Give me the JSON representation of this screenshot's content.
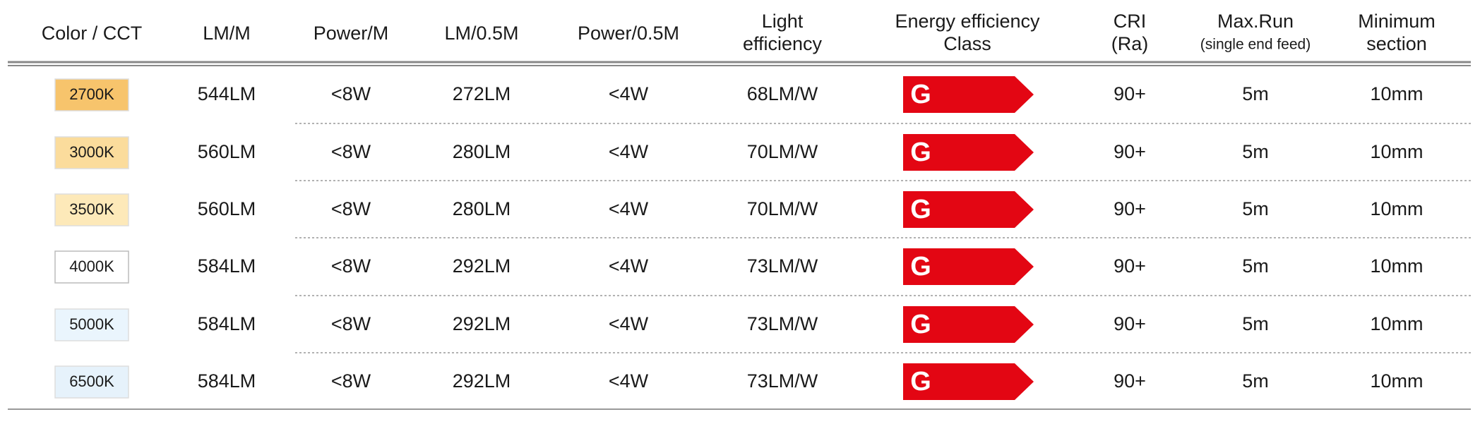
{
  "table": {
    "headers": [
      [
        {
          "text": "Color / CCT"
        }
      ],
      [
        {
          "text": "LM/M"
        }
      ],
      [
        {
          "text": "Power/M"
        }
      ],
      [
        {
          "text": "LM/0.5M"
        }
      ],
      [
        {
          "text": "Power/0.5M"
        }
      ],
      [
        {
          "text": "Light"
        },
        {
          "text": "efficiency"
        }
      ],
      [
        {
          "text": "Energy efficiency"
        },
        {
          "text": "Class"
        }
      ],
      [
        {
          "text": "CRI"
        },
        {
          "text": "(Ra)"
        }
      ],
      [
        {
          "text": "Max.Run"
        },
        {
          "text": "(single end feed)",
          "small": true
        }
      ],
      [
        {
          "text": "Minimum"
        },
        {
          "text": "section"
        }
      ]
    ],
    "rows": [
      {
        "swatch": "#f7c46c",
        "cells": [
          "2700K",
          "544LM",
          "<8W",
          "272LM",
          "<4W",
          "68LM/W",
          "G",
          "90+",
          "5m",
          "10mm"
        ]
      },
      {
        "swatch": "#fbdc9c",
        "cells": [
          "3000K",
          "560LM",
          "<8W",
          "280LM",
          "<4W",
          "70LM/W",
          "G",
          "90+",
          "5m",
          "10mm"
        ]
      },
      {
        "swatch": "#fde9b9",
        "cells": [
          "3500K",
          "560LM",
          "<8W",
          "280LM",
          "<4W",
          "70LM/W",
          "G",
          "90+",
          "5m",
          "10mm"
        ]
      },
      {
        "swatch": "#ffffff",
        "cells": [
          "4000K",
          "584LM",
          "<8W",
          "292LM",
          "<4W",
          "73LM/W",
          "G",
          "90+",
          "5m",
          "10mm"
        ]
      },
      {
        "swatch": "#eaf5fd",
        "cells": [
          "5000K",
          "584LM",
          "<8W",
          "292LM",
          "<4W",
          "73LM/W",
          "G",
          "90+",
          "5m",
          "10mm"
        ]
      },
      {
        "swatch": "#e6f2fb",
        "cells": [
          "6500K",
          "584LM",
          "<8W",
          "292LM",
          "<4W",
          "73LM/W",
          "G",
          "90+",
          "5m",
          "10mm"
        ]
      }
    ],
    "class_color": "#e30613"
  }
}
